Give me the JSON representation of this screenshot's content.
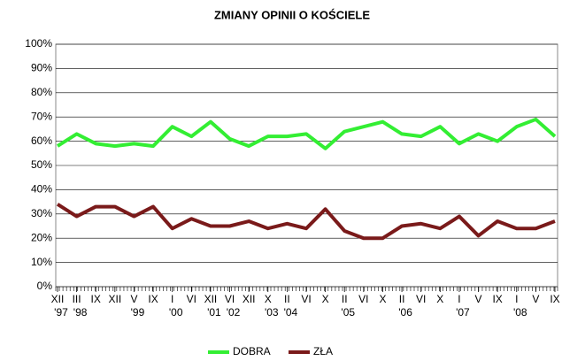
{
  "chart_data": {
    "type": "line",
    "title": "ZMIANY OPINII O KOŚCIELE",
    "categories": [
      "XII",
      "III",
      "IX",
      "XII",
      "V",
      "IX",
      "I",
      "VI",
      "XII",
      "VI",
      "XII",
      "X",
      "II",
      "VI",
      "X",
      "II",
      "VI",
      "X",
      "II",
      "VI",
      "X",
      "I",
      "V",
      "IX",
      "I",
      "V",
      "IX"
    ],
    "year_labels": [
      "'97",
      "'98",
      null,
      null,
      "'99",
      null,
      "'00",
      null,
      "'01",
      "'02",
      null,
      "'03",
      "'04",
      null,
      null,
      "'05",
      null,
      null,
      "'06",
      null,
      null,
      "'07",
      null,
      null,
      "'08",
      null,
      null
    ],
    "series": [
      {
        "name": "DOBRA",
        "color": "#33ee33",
        "values": [
          58,
          63,
          59,
          58,
          59,
          58,
          66,
          62,
          68,
          61,
          58,
          62,
          62,
          63,
          57,
          64,
          66,
          68,
          63,
          62,
          66,
          59,
          63,
          60,
          66,
          69,
          62
        ]
      },
      {
        "name": "ZŁA",
        "color": "#7a1a1a",
        "values": [
          34,
          29,
          33,
          33,
          29,
          33,
          24,
          28,
          25,
          25,
          27,
          24,
          26,
          24,
          32,
          23,
          20,
          20,
          25,
          26,
          24,
          29,
          21,
          27,
          24,
          24,
          27
        ]
      }
    ],
    "ylim": [
      0,
      100
    ],
    "yticks": [
      {
        "value": 0,
        "label": "0%"
      },
      {
        "value": 10,
        "label": "10%"
      },
      {
        "value": 20,
        "label": "20%"
      },
      {
        "value": 30,
        "label": "30%"
      },
      {
        "value": 40,
        "label": "40%"
      },
      {
        "value": 50,
        "label": "50%"
      },
      {
        "value": 60,
        "label": "60%"
      },
      {
        "value": 70,
        "label": "70%"
      },
      {
        "value": 80,
        "label": "80%"
      },
      {
        "value": 90,
        "label": "90%"
      },
      {
        "value": 100,
        "label": "100%"
      }
    ],
    "grid": true,
    "legend": "bottom"
  }
}
